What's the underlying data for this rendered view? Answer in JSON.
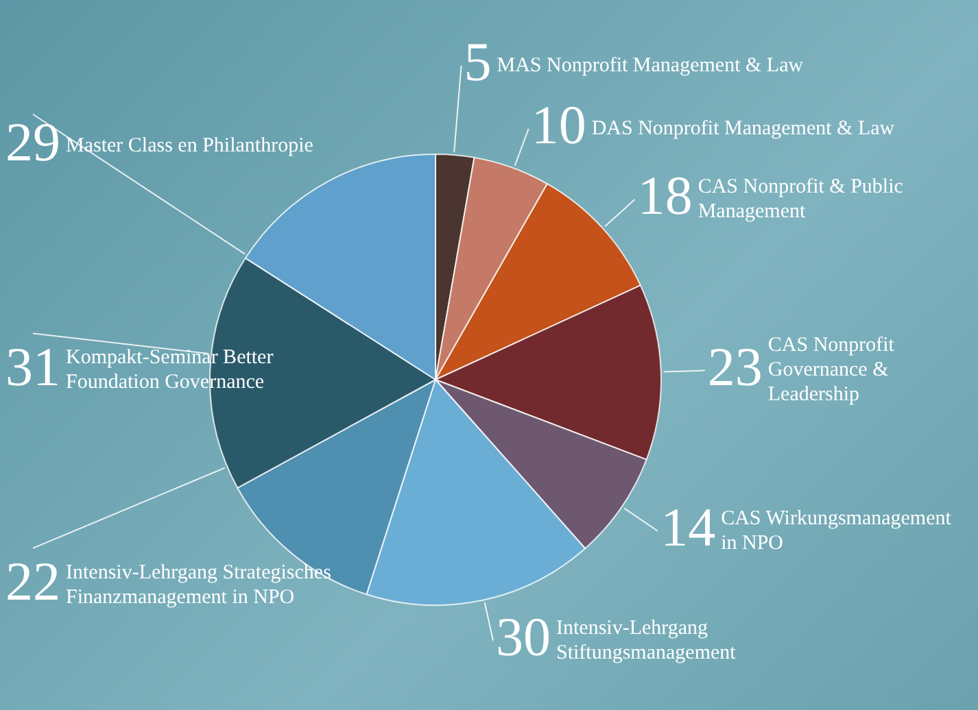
{
  "chart_data": {
    "type": "pie",
    "categories": [
      "MAS Nonprofit Management & Law",
      "DAS Nonprofit Management & Law",
      "CAS Nonprofit & Public Management",
      "CAS Nonprofit Governance & Leadership",
      "CAS Wirkungsmanagement in NPO",
      "Intensiv-Lehrgang Stiftungsmanagement",
      "Intensiv-Lehrgang Strategisches Finanzmanagement in NPO",
      "Kompakt-Seminar Better Foundation Governance",
      "Master Class en Philanthropie"
    ],
    "values": [
      5,
      10,
      18,
      23,
      14,
      30,
      22,
      31,
      29
    ],
    "colors": [
      "#4a3530",
      "#c47a66",
      "#c4521a",
      "#722a2e",
      "#6e5870",
      "#6aaed6",
      "#4f8fb0",
      "#2a5a6a",
      "#5fa0cc"
    ],
    "data_labels": true,
    "legend": false
  }
}
